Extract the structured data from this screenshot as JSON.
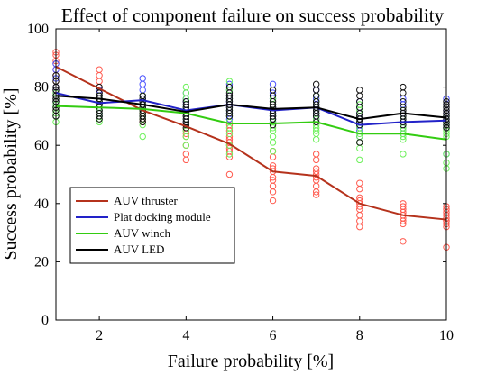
{
  "chart_data": {
    "type": "line",
    "title": "Effect of component failure on success probability",
    "xlabel": "Failure probability [%]",
    "ylabel": "Success probability [%]",
    "xlim": [
      1,
      10
    ],
    "ylim": [
      0,
      100
    ],
    "xticks": [
      2,
      4,
      6,
      8,
      10
    ],
    "yticks": [
      0,
      20,
      40,
      60,
      80,
      100
    ],
    "grid": false,
    "legend_position": "bottom-left",
    "x": [
      1,
      2,
      3,
      4,
      5,
      6,
      7,
      8,
      9,
      10
    ],
    "series": [
      {
        "name": "AUV thruster",
        "color": "#b5321c",
        "scatter_color": "#ff5a4e",
        "mean": [
          87,
          79.5,
          72,
          66.5,
          60.5,
          51,
          49.5,
          40,
          36,
          34.5
        ],
        "samples": [
          [
            92,
            91,
            89,
            88,
            86,
            84,
            82,
            80,
            79,
            78
          ],
          [
            86,
            84,
            82,
            80,
            79,
            78,
            76,
            75,
            74,
            72
          ],
          [
            77,
            75,
            74,
            73,
            72,
            71,
            70,
            70,
            69,
            68
          ],
          [
            70,
            68,
            67,
            66,
            65,
            64,
            63,
            60,
            57,
            55
          ],
          [
            67,
            65,
            63,
            62,
            61,
            60,
            59,
            58,
            56,
            50
          ],
          [
            58,
            56,
            53,
            52,
            51,
            49,
            48,
            46,
            44,
            41
          ],
          [
            57,
            55,
            52,
            51,
            50,
            49,
            48,
            46,
            44,
            43
          ],
          [
            47,
            45,
            42,
            41,
            40,
            39,
            38,
            36,
            34,
            32
          ],
          [
            40,
            39,
            38,
            37,
            37,
            36,
            35,
            34,
            33,
            27
          ],
          [
            39,
            38,
            37,
            36,
            35,
            34,
            34,
            33,
            32,
            25
          ]
        ]
      },
      {
        "name": "Plat docking module",
        "color": "#2222c8",
        "scatter_color": "#4a52ff",
        "mean": [
          78,
          74.5,
          75.5,
          72,
          74,
          72,
          73,
          67,
          68,
          68.5
        ],
        "samples": [
          [
            88,
            86,
            83,
            80,
            79,
            78,
            77,
            76,
            75,
            74
          ],
          [
            79,
            78,
            77,
            76,
            75,
            74,
            73,
            72,
            71,
            70
          ],
          [
            83,
            81,
            79,
            77,
            76,
            75,
            74,
            73,
            72,
            70
          ],
          [
            78,
            76,
            75,
            74,
            73,
            72,
            71,
            70,
            69,
            68
          ],
          [
            81,
            79,
            77,
            76,
            75,
            74,
            73,
            72,
            71,
            69
          ],
          [
            81,
            78,
            76,
            74,
            73,
            72,
            71,
            70,
            69,
            68
          ],
          [
            79,
            77,
            76,
            75,
            74,
            73,
            72,
            71,
            70,
            69
          ],
          [
            75,
            73,
            71,
            70,
            69,
            68,
            67,
            66,
            65,
            63
          ],
          [
            76,
            74,
            72,
            71,
            70,
            69,
            68,
            67,
            66,
            64
          ],
          [
            76,
            74,
            72,
            71,
            70,
            69,
            68,
            67,
            66,
            57
          ]
        ]
      },
      {
        "name": "AUV winch",
        "color": "#33cc11",
        "scatter_color": "#6cf05a",
        "mean": [
          73.5,
          73,
          72.5,
          71,
          67.5,
          67.5,
          68,
          64,
          64,
          62
        ],
        "samples": [
          [
            78,
            77,
            76,
            75,
            74,
            73,
            72,
            71,
            70,
            68
          ],
          [
            77,
            76,
            75,
            74,
            73,
            72,
            71,
            70,
            69,
            68
          ],
          [
            77,
            75,
            74,
            73,
            72,
            71,
            70,
            69,
            67,
            63
          ],
          [
            80,
            78,
            76,
            73,
            71,
            69,
            67,
            65,
            63,
            60
          ],
          [
            82,
            79,
            76,
            72,
            70,
            68,
            66,
            64,
            60,
            57
          ],
          [
            76,
            74,
            72,
            70,
            68,
            66,
            65,
            63,
            61,
            58
          ],
          [
            77,
            75,
            73,
            71,
            69,
            67,
            66,
            65,
            64,
            62
          ],
          [
            74,
            72,
            70,
            68,
            66,
            64,
            63,
            61,
            59,
            55
          ],
          [
            72,
            70,
            69,
            67,
            66,
            65,
            64,
            63,
            62,
            57
          ],
          [
            70,
            68,
            67,
            66,
            65,
            64,
            63,
            57,
            54,
            52
          ]
        ]
      },
      {
        "name": "AUV LED",
        "color": "#000000",
        "scatter_color": "#111111",
        "mean": [
          77,
          76,
          74,
          71.5,
          74,
          72.5,
          73,
          69,
          71,
          69.5
        ],
        "samples": [
          [
            84,
            82,
            80,
            79,
            77,
            76,
            75,
            73,
            72,
            70
          ],
          [
            80,
            78,
            77,
            76,
            75,
            74,
            72,
            71,
            70,
            69
          ],
          [
            77,
            76,
            75,
            74,
            73,
            72,
            71,
            70,
            69,
            68
          ],
          [
            75,
            74,
            73,
            72,
            71,
            70,
            69,
            68,
            67,
            66
          ],
          [
            80,
            78,
            77,
            76,
            75,
            74,
            73,
            72,
            71,
            70
          ],
          [
            79,
            77,
            75,
            74,
            73,
            72,
            71,
            70,
            69,
            67
          ],
          [
            81,
            79,
            77,
            75,
            74,
            73,
            72,
            71,
            70,
            68
          ],
          [
            79,
            77,
            75,
            73,
            71,
            70,
            69,
            68,
            67,
            61
          ],
          [
            80,
            78,
            75,
            73,
            72,
            71,
            70,
            69,
            68,
            67
          ],
          [
            75,
            74,
            73,
            72,
            71,
            70,
            69,
            68,
            67,
            66
          ]
        ]
      }
    ]
  }
}
